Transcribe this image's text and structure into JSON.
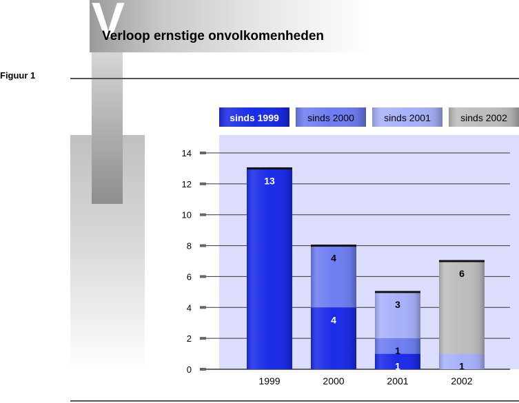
{
  "header": {
    "decorative_letter": "V",
    "title": "Verloop ernstige onvolkomenheden",
    "figure_label": "Figuur 1"
  },
  "colors": {
    "sinds_1999": "#1a2be8",
    "sinds_2000": "#6e7ef2",
    "sinds_2001": "#a8b2fa",
    "sinds_2002": "#bdbdbd",
    "plot_background": "#dcdcfc"
  },
  "chart_data": {
    "type": "bar",
    "stacked": true,
    "title": "Verloop ernstige onvolkomenheden",
    "categories": [
      "1999",
      "2000",
      "2001",
      "2002"
    ],
    "series": [
      {
        "name": "sinds 1999",
        "values": [
          13,
          4,
          1,
          0
        ]
      },
      {
        "name": "sinds 2000",
        "values": [
          0,
          4,
          1,
          0
        ]
      },
      {
        "name": "sinds 2001",
        "values": [
          0,
          0,
          3,
          1
        ]
      },
      {
        "name": "sinds 2002",
        "values": [
          0,
          0,
          0,
          6
        ]
      }
    ],
    "y_ticks": [
      "0",
      "2",
      "4",
      "6",
      "8",
      "10",
      "12",
      "14"
    ],
    "ylim": [
      0,
      14
    ],
    "grid": true,
    "legend_position": "top"
  }
}
